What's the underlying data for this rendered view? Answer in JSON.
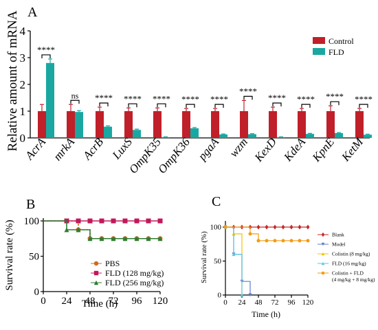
{
  "panels": {
    "a": "A",
    "b": "B",
    "c": "C"
  },
  "chart_data": [
    {
      "type": "bar",
      "title": "",
      "ylabel": "Relative amount of mRNA",
      "xlabel": "",
      "ylim": [
        0,
        4
      ],
      "yticks": [
        "0",
        "1",
        "2",
        "3",
        "4"
      ],
      "categories": [
        "AcrA",
        "mrkA",
        "AcrB",
        "LuxS",
        "OmpK35",
        "OmpK36",
        "pgaA",
        "wzm",
        "KexD",
        "KdeA",
        "KpnE",
        "KetM"
      ],
      "series": [
        {
          "name": "Control",
          "color": "#c0202a",
          "values": [
            1.0,
            1.0,
            1.0,
            1.0,
            1.0,
            1.0,
            1.0,
            1.0,
            1.0,
            1.0,
            1.0,
            1.0
          ],
          "errors": [
            0.25,
            0.25,
            0.15,
            0.12,
            0.12,
            0.1,
            0.1,
            0.4,
            0.15,
            0.1,
            0.2,
            0.1
          ]
        },
        {
          "name": "FLD",
          "color": "#1aa7a1",
          "values": [
            2.8,
            0.97,
            0.42,
            0.3,
            0.03,
            0.36,
            0.13,
            0.14,
            0.03,
            0.15,
            0.18,
            0.12
          ],
          "errors": [
            0.15,
            0.05,
            0.03,
            0.03,
            0.01,
            0.03,
            0.02,
            0.02,
            0.01,
            0.02,
            0.02,
            0.02
          ]
        }
      ],
      "significance": [
        "****",
        "ns",
        "****",
        "****",
        "****",
        "****",
        "****",
        "****",
        "****",
        "****",
        "****",
        "****"
      ],
      "legend": "top-right"
    },
    {
      "type": "line",
      "title": "",
      "xlabel": "Time (h)",
      "ylabel": "Survival rate (%)",
      "xlim": [
        0,
        120
      ],
      "ylim": [
        0,
        100
      ],
      "xticks": [
        "0",
        "24",
        "48",
        "72",
        "96",
        "120"
      ],
      "yticks": [
        "0",
        "50",
        "100"
      ],
      "series": [
        {
          "name": "PBS",
          "color": "#d2691e",
          "marker": "circle",
          "x": [
            0,
            24,
            36,
            48,
            60,
            72,
            84,
            96,
            108,
            120
          ],
          "y": [
            100,
            100,
            87.5,
            75,
            75,
            75,
            75,
            75,
            75,
            75
          ]
        },
        {
          "name": "FLD (128 mg/kg)",
          "color": "#c2185b",
          "marker": "square",
          "x": [
            0,
            24,
            36,
            48,
            60,
            72,
            84,
            96,
            108,
            120
          ],
          "y": [
            100,
            100,
            100,
            100,
            100,
            100,
            100,
            100,
            100,
            100
          ]
        },
        {
          "name": "FLD (256 mg/kg)",
          "color": "#2e7d32",
          "marker": "triangle",
          "x": [
            0,
            24,
            36,
            48,
            60,
            72,
            84,
            96,
            108,
            120
          ],
          "y": [
            100,
            87.5,
            87.5,
            75,
            75,
            75,
            75,
            75,
            75,
            75
          ]
        }
      ],
      "legend": "bottom-right"
    },
    {
      "type": "line",
      "title": "",
      "xlabel": "Time (h)",
      "ylabel": "Survival rate (%)",
      "xlim": [
        0,
        120
      ],
      "ylim": [
        0,
        100
      ],
      "xticks": [
        "0",
        "24",
        "48",
        "72",
        "96",
        "120"
      ],
      "yticks": [
        "0",
        "50",
        "100"
      ],
      "series": [
        {
          "name": "Blank",
          "color": "#c62828",
          "marker": "diamond",
          "x": [
            0,
            12,
            24,
            36,
            48,
            60,
            72,
            84,
            96,
            108,
            120
          ],
          "y": [
            100,
            100,
            100,
            100,
            100,
            100,
            100,
            100,
            100,
            100,
            100
          ]
        },
        {
          "name": "Model",
          "color": "#5c7ccf",
          "marker": "triangle-down",
          "x": [
            0,
            12,
            24,
            36
          ],
          "y": [
            100,
            60,
            20,
            0
          ]
        },
        {
          "name": "Colistin (8 mg/kg)",
          "color": "#f2c200",
          "marker": "triangle",
          "x": [
            0,
            12,
            24
          ],
          "y": [
            100,
            90,
            0
          ]
        },
        {
          "name": "FLD (16 mg/kg)",
          "color": "#5bc8e6",
          "marker": "triangle",
          "x": [
            0,
            12,
            24
          ],
          "y": [
            100,
            60,
            0
          ]
        },
        {
          "name": "Colistin + FLD\n(4 mg/kg + 8 mg/kg)",
          "color": "#f39c12",
          "marker": "circle",
          "x": [
            0,
            36,
            48,
            60,
            72,
            84,
            96,
            108,
            120
          ],
          "y": [
            100,
            90,
            80,
            80,
            80,
            80,
            80,
            80,
            80
          ]
        }
      ],
      "legend": "right"
    }
  ]
}
